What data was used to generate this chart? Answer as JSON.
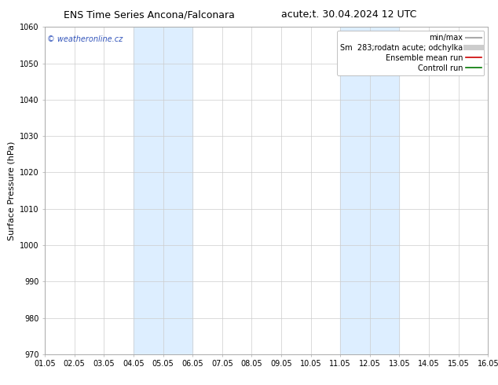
{
  "title_left": "ENS Time Series Ancona/Falconara",
  "title_right": "acute;t. 30.04.2024 12 UTC",
  "ylabel": "Surface Pressure (hPa)",
  "xlabel_ticks": [
    "01.05",
    "02.05",
    "03.05",
    "04.05",
    "05.05",
    "06.05",
    "07.05",
    "08.05",
    "09.05",
    "10.05",
    "11.05",
    "12.05",
    "13.05",
    "14.05",
    "15.05",
    "16.05"
  ],
  "ylim": [
    970,
    1060
  ],
  "yticks": [
    970,
    980,
    990,
    1000,
    1010,
    1020,
    1030,
    1040,
    1050,
    1060
  ],
  "shaded_regions": [
    {
      "xstart": 3,
      "xend": 5,
      "color": "#ddeeff"
    },
    {
      "xstart": 10,
      "xend": 12,
      "color": "#ddeeff"
    }
  ],
  "watermark": "© weatheronline.cz",
  "legend_entries": [
    {
      "label": "min/max",
      "color": "#aaaaaa",
      "lw": 1.5
    },
    {
      "label": "Sm  283;rodatn acute; odchylka",
      "color": "#cccccc",
      "lw": 5
    },
    {
      "label": "Ensemble mean run",
      "color": "#cc0000",
      "lw": 1.2
    },
    {
      "label": "Controll run",
      "color": "#007700",
      "lw": 1.2
    }
  ],
  "background_color": "#ffffff",
  "plot_bg_color": "#ffffff",
  "grid_color": "#cccccc",
  "title_fontsize": 9,
  "ylabel_fontsize": 8,
  "tick_fontsize": 7,
  "legend_fontsize": 7,
  "watermark_fontsize": 7
}
